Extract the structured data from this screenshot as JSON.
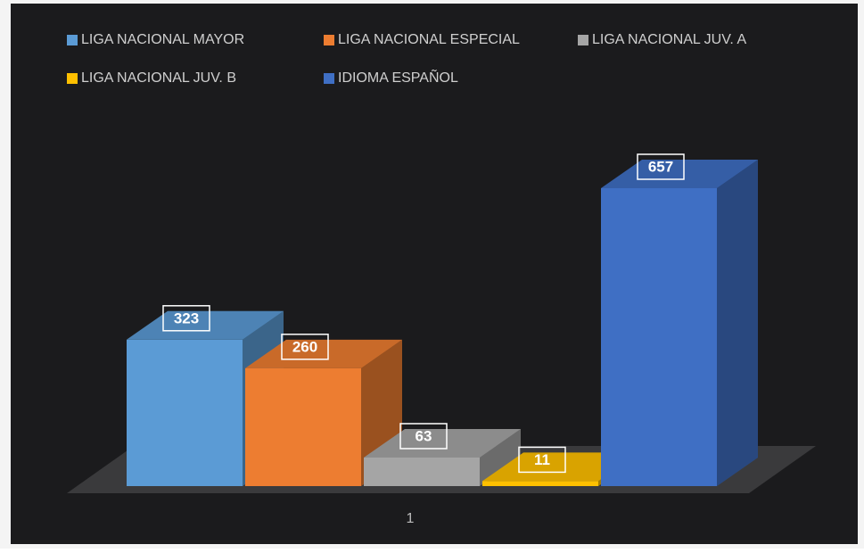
{
  "chart_data": {
    "type": "bar3d",
    "categories": [
      "1"
    ],
    "series": [
      {
        "name": "LIGA NACIONAL  MAYOR",
        "color": "#5b9bd5",
        "values": [
          323
        ]
      },
      {
        "name": "LIGA NACIONAL  ESPECIAL",
        "color": "#ed7d31",
        "values": [
          260
        ]
      },
      {
        "name": "LIGA NACIONAL  JUV. A",
        "color": "#a5a5a5",
        "values": [
          63
        ]
      },
      {
        "name": "LIGA NACIONAL  JUV. B",
        "color": "#ffc000",
        "values": [
          11
        ]
      },
      {
        "name": "IDIOMA  ESPAÑOL",
        "color": "#3f6fc4",
        "values": [
          657
        ]
      }
    ],
    "legend": "top"
  }
}
